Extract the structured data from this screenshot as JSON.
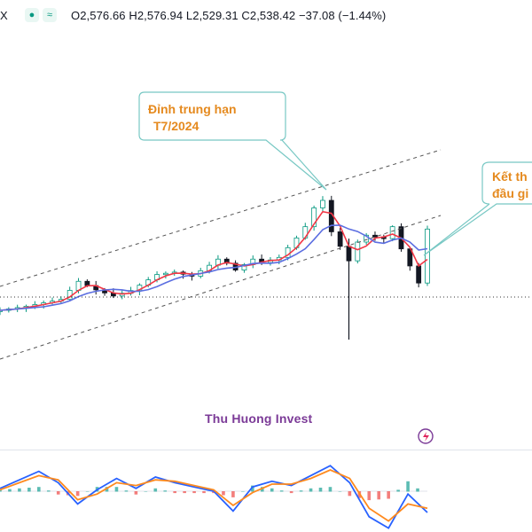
{
  "header": {
    "ticker_fragment": "X",
    "ohlc_text": "O2,576.66 H2,576.94 L2,529.31 C2,538.42 −37.08 (−1.44%)",
    "btn_dot_icon": "dot-icon",
    "btn_wave_icon": "wave-icon"
  },
  "annotations": {
    "top_line1": "Đỉnh trung hạn",
    "top_line2": "T7/2024",
    "right_line1": "Kết th",
    "right_line2": "đầu gi"
  },
  "watermark": "Thu Huong Invest",
  "colors": {
    "up": "#089981",
    "down": "#131722",
    "ma_fast": "#f23645",
    "ma_slow": "#5b6ee1",
    "macd_line": "#2962ff",
    "signal_line": "#ff8a1f",
    "hist_pos": "#26a69a",
    "hist_neg": "#ef5350",
    "callout_border": "#78c8c4",
    "callout_text": "#e58a1f",
    "watermark": "#7b3a97"
  },
  "chart_data": [
    {
      "type": "candlestick",
      "title": "",
      "last_close": 2538.42,
      "series": [
        {
          "name": "",
          "values": [
            2300,
            2312,
            2332,
            2385,
            2360,
            2342,
            2358,
            2405,
            2412,
            2400,
            2432,
            2450,
            2438,
            2418,
            2450,
            2440,
            2455,
            2512,
            2545,
            2600,
            2622,
            2530,
            2445,
            2500,
            2520,
            2515,
            2510,
            2545,
            2480,
            2430,
            2380,
            2538
          ]
        }
      ],
      "x": [
        0,
        3,
        7,
        9,
        11,
        13,
        15,
        18,
        20,
        22,
        24,
        25,
        26,
        27,
        29,
        30,
        32,
        34,
        35,
        36,
        37,
        38,
        40,
        41,
        42,
        43,
        44,
        45,
        46,
        47,
        48,
        49
      ],
      "overlays": [
        "short moving average",
        "long moving average",
        "upper trend channel",
        "lower trend channel",
        "last price line"
      ]
    },
    {
      "type": "line",
      "title": "",
      "series": [
        {
          "name": "",
          "values": [
            0.2,
            0.8,
            1.4,
            0.6,
            -0.9,
            0.1,
            0.9,
            0.2,
            1.0,
            0.6,
            0.3,
            0.0,
            -1.4,
            0.3,
            0.7,
            0.4,
            1.1,
            1.8,
            0.6,
            -1.8,
            -2.6,
            -0.2,
            -1.5
          ]
        },
        {
          "name": "",
          "values": [
            0.1,
            0.6,
            1.1,
            0.8,
            -0.6,
            -0.2,
            0.6,
            0.4,
            0.8,
            0.7,
            0.4,
            0.1,
            -1.0,
            -0.1,
            0.5,
            0.5,
            0.9,
            1.5,
            0.9,
            -1.2,
            -2.1,
            -0.9,
            -1.2
          ]
        }
      ],
      "x": [
        0,
        2,
        4,
        6,
        8,
        10,
        12,
        14,
        16,
        18,
        20,
        22,
        24,
        26,
        28,
        30,
        32,
        34,
        36,
        38,
        40,
        42,
        44
      ],
      "histogram": [
        0.1,
        0.2,
        0.3,
        -0.2,
        -0.3,
        0.3,
        0.3,
        -0.2,
        0.2,
        -0.1,
        -0.1,
        -0.1,
        -0.4,
        0.4,
        0.2,
        -0.1,
        0.2,
        0.3,
        -0.3,
        -0.6,
        -0.5,
        0.7,
        -0.3
      ]
    }
  ]
}
